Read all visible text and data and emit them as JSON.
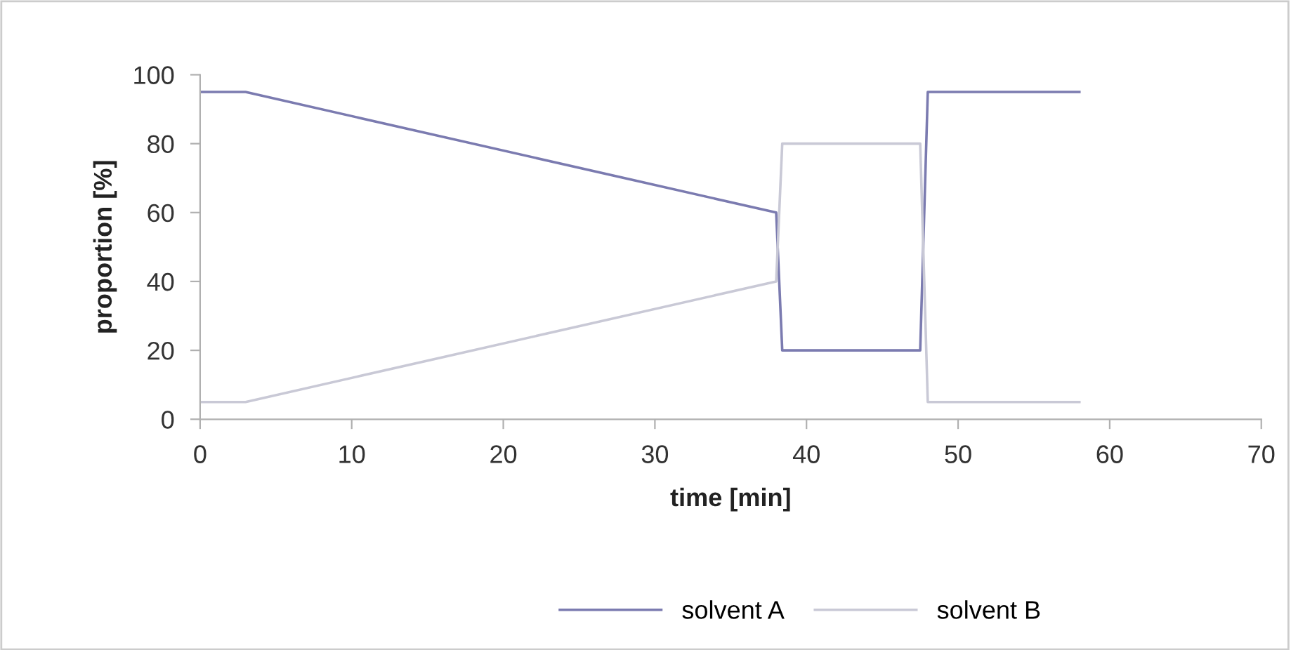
{
  "chart_data": {
    "type": "line",
    "xlabel": "time [min]",
    "ylabel": "proportion [%]",
    "xlim": [
      0,
      70
    ],
    "xticks": [
      0,
      10,
      20,
      30,
      40,
      50,
      60,
      70
    ],
    "ylim": [
      0,
      100
    ],
    "yticks": [
      0,
      20,
      40,
      60,
      80,
      100
    ],
    "grid": false,
    "legend": "bottom",
    "marker": "none",
    "line_style": "solid",
    "series": [
      {
        "name": "solvent A",
        "color": "#7b7bb0",
        "x": [
          0,
          3,
          38,
          38.4,
          47.5,
          48,
          58
        ],
        "values": [
          95,
          95,
          60,
          20,
          20,
          95,
          95
        ]
      },
      {
        "name": "solvent B",
        "color": "#c9c9d6",
        "x": [
          0,
          3,
          38,
          38.4,
          47.5,
          48,
          58
        ],
        "values": [
          5,
          5,
          40,
          80,
          80,
          5,
          5
        ]
      }
    ]
  }
}
